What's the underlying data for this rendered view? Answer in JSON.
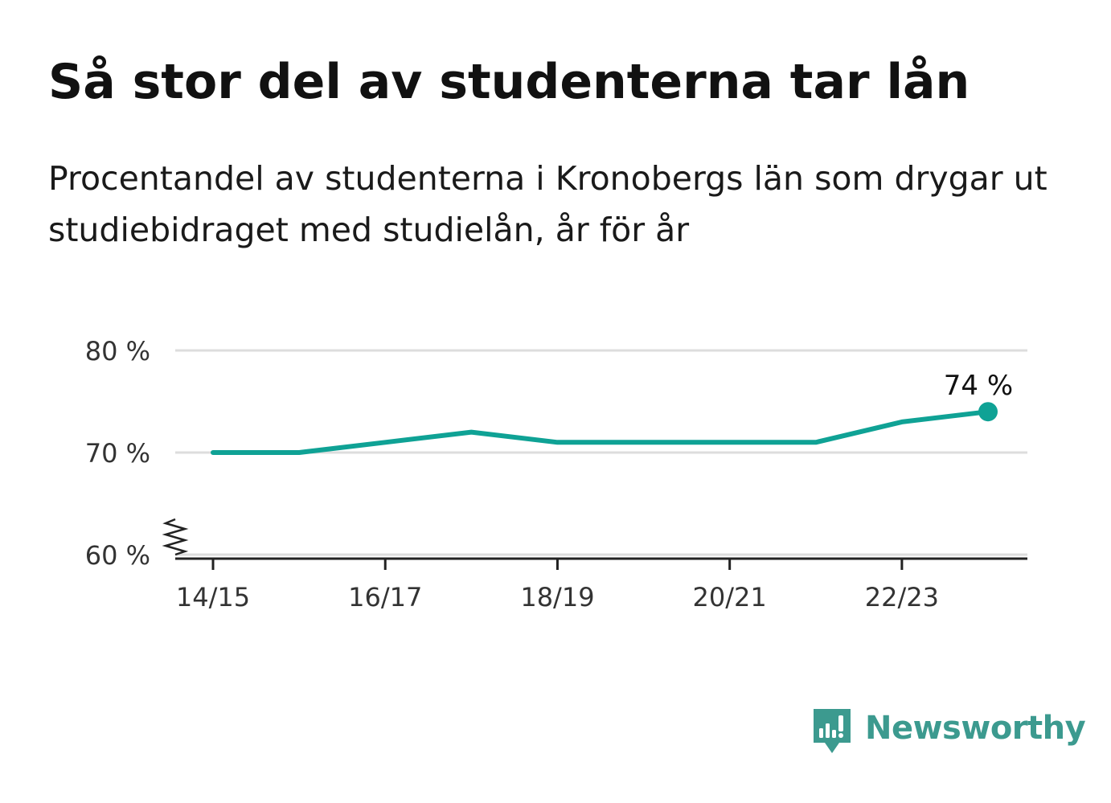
{
  "header": {
    "title": "Så stor del av studenterna tar lån",
    "subtitle": "Procentandel av studenterna i Kronobergs län som drygar ut studiebidraget med studielån, år för år"
  },
  "brand": {
    "name": "Newsworthy",
    "icon": "newsworthy-logo-icon",
    "color": "#3c9a8f"
  },
  "chart_data": {
    "type": "line",
    "x": [
      "14/15",
      "15/16",
      "16/17",
      "17/18",
      "18/19",
      "19/20",
      "20/21",
      "21/22",
      "22/23",
      "23/24"
    ],
    "series": [
      {
        "values": [
          70,
          70,
          71,
          72,
          71,
          71,
          71,
          71,
          73,
          74
        ],
        "color": "#0fa295"
      }
    ],
    "x_tick_labels": [
      "14/15",
      "16/17",
      "18/19",
      "20/21",
      "22/23"
    ],
    "y_ticks": [
      60,
      70,
      80
    ],
    "y_tick_labels": [
      "60 %",
      "70 %",
      "80 %"
    ],
    "ylim": [
      60,
      80
    ],
    "y_axis_break": true,
    "grid": "horizontal",
    "end_label": "74 %",
    "legend": "none"
  }
}
